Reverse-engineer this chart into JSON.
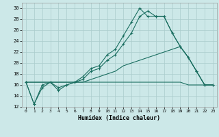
{
  "xlabel": "Humidex (Indice chaleur)",
  "bg_color": "#cce8e8",
  "grid_color": "#aacccc",
  "line_color": "#1a6e60",
  "xlim": [
    -0.5,
    23.5
  ],
  "ylim": [
    12,
    31
  ],
  "xticks": [
    0,
    1,
    2,
    3,
    4,
    5,
    6,
    7,
    8,
    9,
    10,
    11,
    12,
    13,
    14,
    15,
    16,
    17,
    18,
    19,
    20,
    21,
    22,
    23
  ],
  "yticks": [
    12,
    14,
    16,
    18,
    20,
    22,
    24,
    26,
    28,
    30
  ],
  "line1_x": [
    0,
    1,
    2,
    3,
    4,
    5,
    6,
    7,
    8,
    9,
    10,
    11,
    12,
    13,
    14,
    15,
    16,
    17,
    18,
    19,
    20,
    21,
    22,
    23
  ],
  "line1_y": [
    16.5,
    12.5,
    16.0,
    16.5,
    15.0,
    16.0,
    16.5,
    17.5,
    19.0,
    19.5,
    21.5,
    22.5,
    25.0,
    27.5,
    30.0,
    28.5,
    28.5,
    28.5,
    25.5,
    23.0,
    21.0,
    18.5,
    16.0,
    16.0
  ],
  "line2_x": [
    0,
    1,
    2,
    3,
    4,
    5,
    6,
    7,
    8,
    9,
    10,
    11,
    12,
    13,
    14,
    15,
    16,
    17,
    18,
    19,
    20,
    21,
    22,
    23
  ],
  "line2_y": [
    16.5,
    12.5,
    15.5,
    16.5,
    15.5,
    16.0,
    16.5,
    17.0,
    18.5,
    19.0,
    20.5,
    21.5,
    23.5,
    25.5,
    28.5,
    29.5,
    28.5,
    28.5,
    25.5,
    23.0,
    21.0,
    18.5,
    16.0,
    16.0
  ],
  "line3_x": [
    0,
    5,
    10,
    14,
    15,
    19,
    20,
    21,
    22,
    23
  ],
  "line3_y": [
    16.5,
    16.5,
    16.5,
    16.5,
    16.5,
    16.5,
    16.0,
    16.0,
    16.0,
    16.0
  ],
  "line4_x": [
    0,
    5,
    6,
    7,
    8,
    9,
    10,
    11,
    12,
    13,
    14,
    15,
    16,
    17,
    18,
    19,
    20,
    21,
    22,
    23
  ],
  "line4_y": [
    16.5,
    16.5,
    16.5,
    16.5,
    17.0,
    17.5,
    18.0,
    18.5,
    19.5,
    20.0,
    20.5,
    21.0,
    21.5,
    22.0,
    22.5,
    23.0,
    21.0,
    18.5,
    16.0,
    16.0
  ]
}
